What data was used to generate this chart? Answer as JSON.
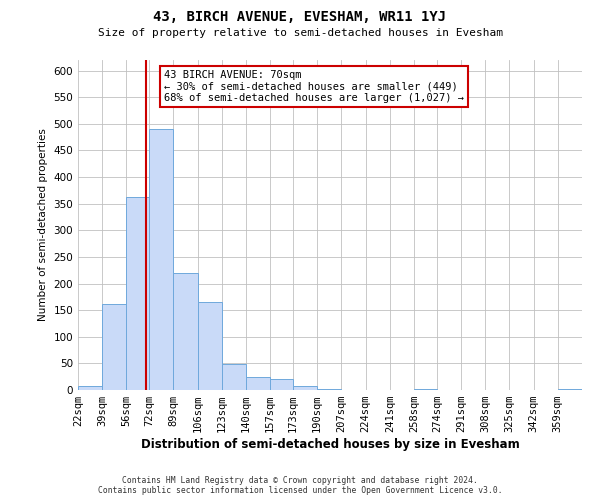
{
  "title": "43, BIRCH AVENUE, EVESHAM, WR11 1YJ",
  "subtitle": "Size of property relative to semi-detached houses in Evesham",
  "xlabel": "Distribution of semi-detached houses by size in Evesham",
  "ylabel": "Number of semi-detached properties",
  "bin_labels": [
    "22sqm",
    "39sqm",
    "56sqm",
    "72sqm",
    "89sqm",
    "106sqm",
    "123sqm",
    "140sqm",
    "157sqm",
    "173sqm",
    "190sqm",
    "207sqm",
    "224sqm",
    "241sqm",
    "258sqm",
    "274sqm",
    "291sqm",
    "308sqm",
    "325sqm",
    "342sqm",
    "359sqm"
  ],
  "bar_heights": [
    8,
    162,
    362,
    491,
    219,
    165,
    49,
    25,
    20,
    8,
    2,
    0,
    0,
    0,
    2,
    0,
    0,
    0,
    0,
    0,
    2
  ],
  "bar_color": "#c9daf8",
  "bar_edge_color": "#6fa8dc",
  "property_line_x": 70,
  "bin_edges": [
    22,
    39,
    56,
    72,
    89,
    106,
    123,
    140,
    157,
    173,
    190,
    207,
    224,
    241,
    258,
    274,
    291,
    308,
    325,
    342,
    359
  ],
  "ylim": [
    0,
    620
  ],
  "yticks": [
    0,
    50,
    100,
    150,
    200,
    250,
    300,
    350,
    400,
    450,
    500,
    550,
    600
  ],
  "annotation_title": "43 BIRCH AVENUE: 70sqm",
  "annotation_line1": "← 30% of semi-detached houses are smaller (449)",
  "annotation_line2": "68% of semi-detached houses are larger (1,027) →",
  "annotation_box_color": "#ffffff",
  "annotation_box_edge": "#cc0000",
  "property_line_color": "#cc0000",
  "footer_line1": "Contains HM Land Registry data © Crown copyright and database right 2024.",
  "footer_line2": "Contains public sector information licensed under the Open Government Licence v3.0.",
  "background_color": "#ffffff",
  "grid_color": "#c0c0c0"
}
